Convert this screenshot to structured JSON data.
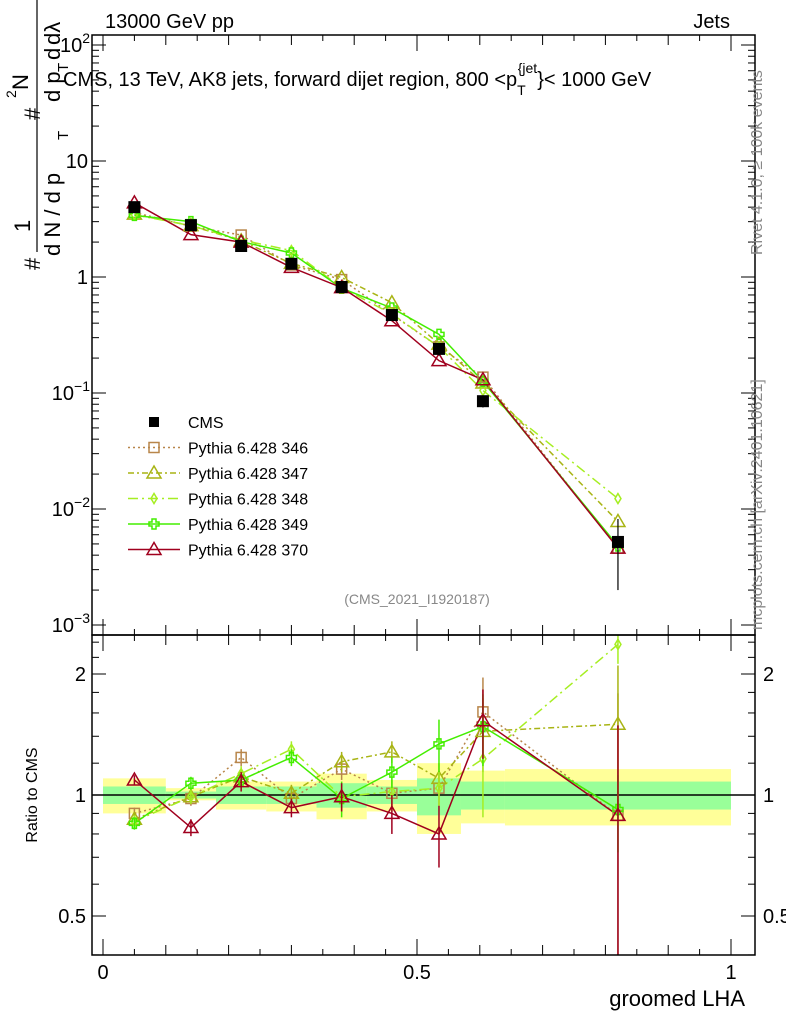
{
  "chart_data": [
    {
      "type": "scatter",
      "panel": "main",
      "header_left": "13000 GeV pp",
      "header_right": "Jets",
      "title": "CMS, 13 TeV, AK8 jets, forward dijet region, 800 <p",
      "title_sub": "T",
      "title_sup": "{jet",
      "title_end": "}< 1000 GeV",
      "ylabel_parts": [
        "#",
        "1",
        "d N / d p",
        "T",
        "#",
        "d p",
        "T",
        "d",
        "2",
        "N",
        "dλ"
      ],
      "yscale": "log",
      "ylim": [
        0.0009,
        130
      ],
      "ytick_labels": [
        {
          "v": 100,
          "b": "10",
          "e": "2"
        },
        {
          "v": 10,
          "b": "10",
          "e": ""
        },
        {
          "v": 1,
          "b": "1",
          "e": ""
        },
        {
          "v": 0.1,
          "b": "10",
          "e": "−1"
        },
        {
          "v": 0.01,
          "b": "10",
          "e": "−2"
        },
        {
          "v": 0.001,
          "b": "10",
          "e": "−3"
        }
      ],
      "watermark": "(CMS_2021_I1920187)",
      "side_text_top": "Rivet 4.1.0, ≥ 100k events",
      "side_text_bottom": "mcplots.cern.ch [arXiv:2401.10621]",
      "legend_position": "bottom-left",
      "x": [
        0.05,
        0.14,
        0.22,
        0.3,
        0.38,
        0.46,
        0.535,
        0.605,
        0.82
      ],
      "bin_edges": [
        0,
        0.1,
        0.18,
        0.26,
        0.34,
        0.42,
        0.5,
        0.57,
        0.64,
        1.0
      ],
      "series": [
        {
          "name": "CMS",
          "color": "#000000",
          "marker": "filled-square",
          "line": "none",
          "values": [
            4.0,
            2.8,
            1.85,
            1.3,
            0.82,
            0.47,
            0.24,
            0.085,
            0.0052
          ],
          "err_low": [
            0.35,
            0.15,
            0.12,
            0.08,
            0.06,
            0.04,
            0.03,
            0.01,
            0.0032
          ],
          "err_high": [
            0.35,
            0.15,
            0.12,
            0.08,
            0.06,
            0.04,
            0.03,
            0.01,
            0.003
          ]
        },
        {
          "name": "Pythia 6.428 346",
          "color": "#b8864a",
          "marker": "open-square",
          "line": "dotted",
          "values": [
            3.6,
            2.74,
            2.3,
            1.27,
            0.95,
            0.475,
            0.25,
            0.137,
            0.0046
          ],
          "ratio": [
            0.9,
            0.98,
            1.24,
            0.98,
            1.16,
            1.01,
            1.04,
            1.61,
            0.89
          ],
          "ratio_err": [
            0.03,
            0.04,
            0.06,
            0.05,
            0.07,
            0.08,
            0.1,
            0.35,
            0.9
          ]
        },
        {
          "name": "Pythia 6.428 347",
          "color": "#a8b414",
          "marker": "open-triangle",
          "line": "dashdot",
          "values": [
            3.48,
            2.77,
            2.05,
            1.31,
            0.99,
            0.6,
            0.264,
            0.122,
            0.0078
          ],
          "ratio": [
            0.87,
            0.99,
            1.11,
            1.01,
            1.21,
            1.28,
            1.1,
            1.44,
            1.5
          ],
          "ratio_err": [
            0.03,
            0.04,
            0.05,
            0.05,
            0.07,
            0.08,
            0.1,
            0.3,
            0.6
          ]
        },
        {
          "name": "Pythia 6.428 348",
          "color": "#a6ee22",
          "marker": "open-diamond",
          "line": "longdashdot",
          "values": [
            3.44,
            2.77,
            2.09,
            1.69,
            0.81,
            0.48,
            0.25,
            0.105,
            0.0123
          ],
          "ratio": [
            0.86,
            0.99,
            1.13,
            1.3,
            0.99,
            1.02,
            1.04,
            1.23,
            2.37
          ],
          "ratio_err": [
            0.03,
            0.04,
            0.05,
            0.06,
            0.07,
            0.08,
            0.1,
            0.35,
            0.25
          ]
        },
        {
          "name": "Pythia 6.428 349",
          "color": "#44ee00",
          "marker": "open-cross",
          "line": "solid",
          "values": [
            3.4,
            3.0,
            2.02,
            1.61,
            0.8,
            0.54,
            0.32,
            0.126,
            0.0048
          ],
          "ratio": [
            0.85,
            1.07,
            1.09,
            1.24,
            0.98,
            1.14,
            1.34,
            1.48,
            0.92
          ],
          "ratio_err": [
            0.03,
            0.04,
            0.04,
            0.06,
            0.1,
            0.1,
            0.2,
            0.3,
            0.2
          ]
        },
        {
          "name": "Pythia 6.428 370",
          "color": "#a0001e",
          "marker": "open-triangle",
          "line": "solid",
          "values": [
            4.36,
            2.32,
            2.0,
            1.21,
            0.81,
            0.42,
            0.19,
            0.13,
            0.0046
          ],
          "ratio": [
            1.09,
            0.83,
            1.08,
            0.93,
            0.99,
            0.9,
            0.8,
            1.53,
            0.89
          ],
          "ratio_err": [
            0.03,
            0.04,
            0.06,
            0.05,
            0.08,
            0.1,
            0.14,
            0.3,
            0.6
          ]
        }
      ]
    },
    {
      "type": "scatter",
      "panel": "ratio",
      "ylabel": "Ratio to CMS",
      "xlabel": "groomed LHA",
      "yscale": "log2",
      "ylim": [
        0.4,
        2.5
      ],
      "ytick_labels": [
        "2",
        "1",
        "0.5"
      ],
      "xlim": [
        0,
        1
      ],
      "xtick_labels": [
        "0",
        "0.5",
        "1"
      ],
      "band_outer": {
        "color": "#ffff99",
        "up": [
          1.1,
          1.04,
          1.08,
          1.08,
          1.13,
          1.09,
          1.2,
          1.15,
          1.16
        ],
        "down": [
          0.9,
          0.97,
          0.92,
          0.91,
          0.87,
          0.91,
          0.8,
          0.85,
          0.84
        ]
      },
      "band_inner": {
        "color": "#99ff99",
        "up": [
          1.05,
          1.02,
          1.05,
          1.05,
          1.07,
          1.05,
          1.1,
          1.08,
          1.08
        ],
        "down": [
          0.95,
          0.98,
          0.95,
          0.95,
          0.93,
          0.95,
          0.89,
          0.92,
          0.92
        ]
      }
    }
  ]
}
